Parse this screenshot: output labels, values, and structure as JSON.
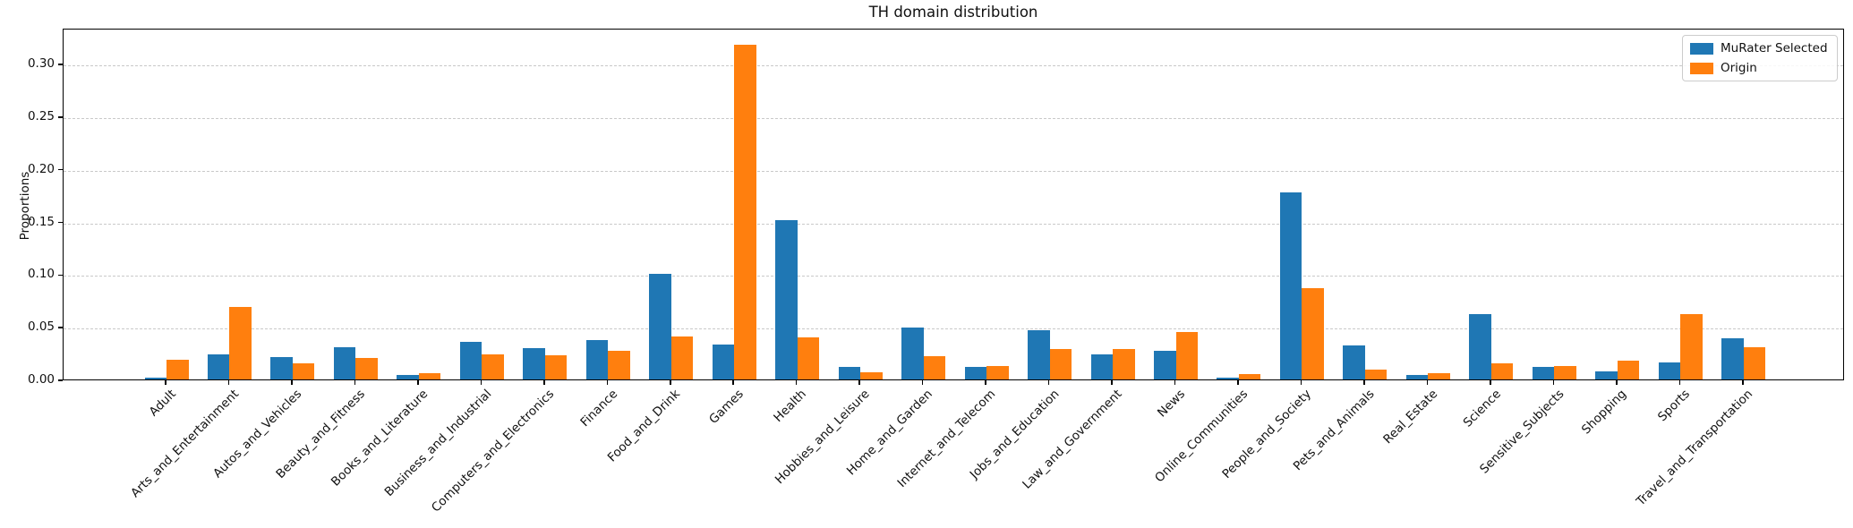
{
  "chart_data": {
    "type": "bar",
    "title": "TH domain distribution",
    "xlabel": "",
    "ylabel": "Proportions",
    "grid": "horizontal-dashed",
    "legend_position": "upper right",
    "ylim": [
      0,
      0.334
    ],
    "yticks": [
      0.0,
      0.05,
      0.1,
      0.15,
      0.2,
      0.25,
      0.3
    ],
    "categories": [
      "Adult",
      "Arts_and_Entertainment",
      "Autos_and_Vehicles",
      "Beauty_and_Fitness",
      "Books_and_Literature",
      "Business_and_Industrial",
      "Computers_and_Electronics",
      "Finance",
      "Food_and_Drink",
      "Games",
      "Health",
      "Hobbies_and_Leisure",
      "Home_and_Garden",
      "Internet_and_Telecom",
      "Jobs_and_Education",
      "Law_and_Government",
      "News",
      "Online_Communities",
      "People_and_Society",
      "Pets_and_Animals",
      "Real_Estate",
      "Science",
      "Sensitive_Subjects",
      "Shopping",
      "Sports",
      "Travel_and_Transportation"
    ],
    "series": [
      {
        "name": "MuRater Selected",
        "color": "#1f77b4",
        "values": [
          0.002,
          0.024,
          0.021,
          0.031,
          0.004,
          0.036,
          0.03,
          0.037,
          0.1,
          0.033,
          0.151,
          0.012,
          0.049,
          0.012,
          0.047,
          0.024,
          0.027,
          0.002,
          0.178,
          0.032,
          0.004,
          0.062,
          0.012,
          0.008,
          0.016,
          0.039
        ]
      },
      {
        "name": "Origin",
        "color": "#ff7f0e",
        "values": [
          0.019,
          0.069,
          0.015,
          0.02,
          0.006,
          0.024,
          0.023,
          0.027,
          0.041,
          0.318,
          0.04,
          0.007,
          0.022,
          0.013,
          0.029,
          0.029,
          0.045,
          0.005,
          0.087,
          0.009,
          0.006,
          0.015,
          0.013,
          0.018,
          0.062,
          0.031
        ]
      }
    ]
  }
}
